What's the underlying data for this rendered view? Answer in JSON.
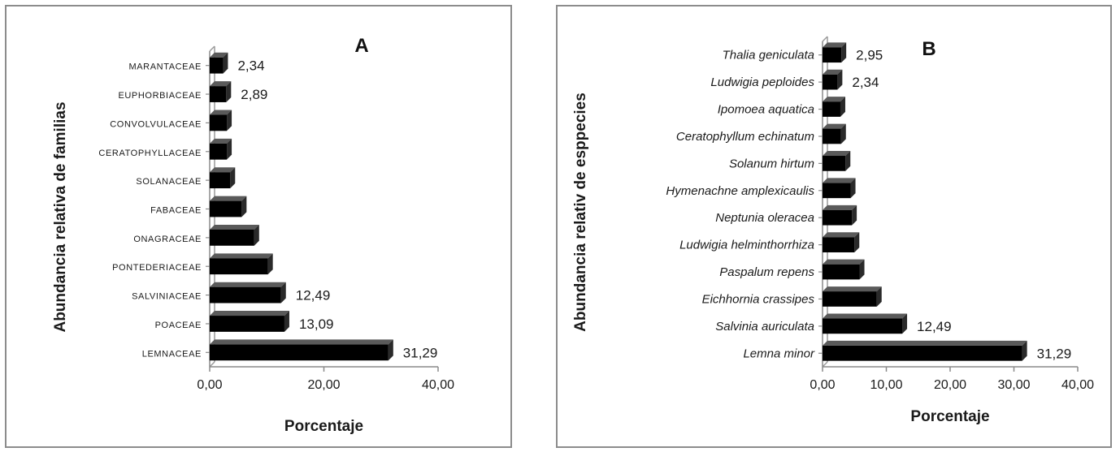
{
  "chart_data": [
    {
      "type": "bar",
      "orientation": "horizontal",
      "panel_label": "A",
      "xlabel": "Porcentaje",
      "ylabel": "Abundancia relativa de familias",
      "xlim": [
        0,
        40
      ],
      "xticks": [
        "0,00",
        "20,00",
        "40,00"
      ],
      "grid": false,
      "categories": [
        "LEMNACEAE",
        "POACEAE",
        "SALVINIACEAE",
        "PONTEDERIACEAE",
        "ONAGRACEAE",
        "FABACEAE",
        "SOLANACEAE",
        "CERATOPHYLLACEAE",
        "CONVOLVULACEAE",
        "EUPHORBIACEAE",
        "MARANTACEAE"
      ],
      "values": [
        31.29,
        13.09,
        12.49,
        10.2,
        7.8,
        5.6,
        3.6,
        3.0,
        3.0,
        2.89,
        2.34
      ],
      "data_labels": [
        "31,29",
        "13,09",
        "12,49",
        "",
        "",
        "",
        "",
        "",
        "",
        "2,89",
        "2,34"
      ]
    },
    {
      "type": "bar",
      "orientation": "horizontal",
      "panel_label": "B",
      "xlabel": "Porcentaje",
      "ylabel": "Abundancia relativ de esppecies",
      "xlim": [
        0,
        40
      ],
      "xticks": [
        "0,00",
        "10,00",
        "20,00",
        "30,00",
        "40,00"
      ],
      "grid": false,
      "categories": [
        "Lemna minor",
        "Salvinia auriculata",
        "Eichhornia crassipes",
        "Paspalum repens",
        "Ludwigia helminthorrhiza",
        "Neptunia oleracea",
        "Hymenachne amplexicaulis",
        "Solanum hirtum",
        "Ceratophyllum echinatum",
        "Ipomoea aquatica",
        "Ludwigia peploides",
        "Thalia geniculata"
      ],
      "values": [
        31.29,
        12.49,
        8.5,
        5.8,
        5.0,
        4.6,
        4.4,
        3.6,
        2.9,
        2.8,
        2.34,
        2.95
      ],
      "data_labels": [
        "31,29",
        "12,49",
        "",
        "",
        "",
        "",
        "",
        "",
        "",
        "",
        "2,34",
        "2,95"
      ]
    }
  ]
}
